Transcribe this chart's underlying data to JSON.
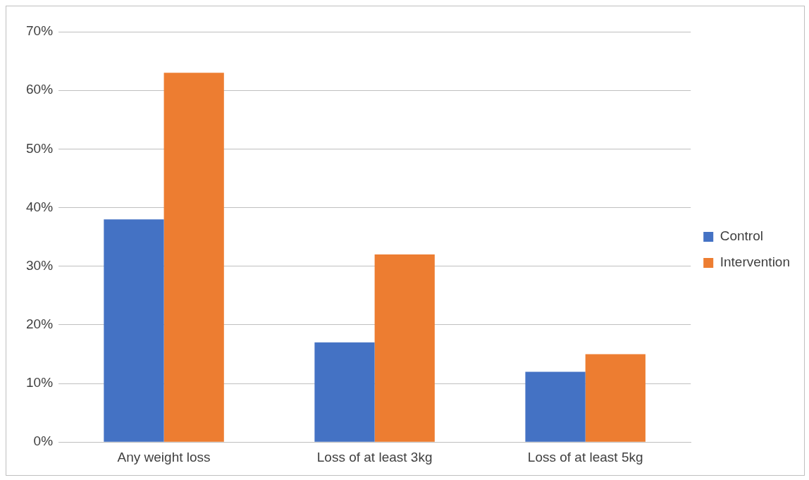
{
  "chart_data": {
    "type": "bar",
    "categories": [
      "Any weight loss",
      "Loss of at least 3kg",
      "Loss of at least 5kg"
    ],
    "series": [
      {
        "name": "Control",
        "color": "#4472c4",
        "values": [
          38,
          17,
          12
        ]
      },
      {
        "name": "Intervention",
        "color": "#ed7d31",
        "values": [
          63,
          32,
          15
        ]
      }
    ],
    "ylim": [
      0,
      70
    ],
    "yticks": [
      {
        "value": 0,
        "label": "0%"
      },
      {
        "value": 10,
        "label": "10%"
      },
      {
        "value": 20,
        "label": "20%"
      },
      {
        "value": 30,
        "label": "30%"
      },
      {
        "value": 40,
        "label": "40%"
      },
      {
        "value": 50,
        "label": "50%"
      },
      {
        "value": 60,
        "label": "60%"
      },
      {
        "value": 70,
        "label": "70%"
      }
    ],
    "grid": "y",
    "legend": "right"
  }
}
